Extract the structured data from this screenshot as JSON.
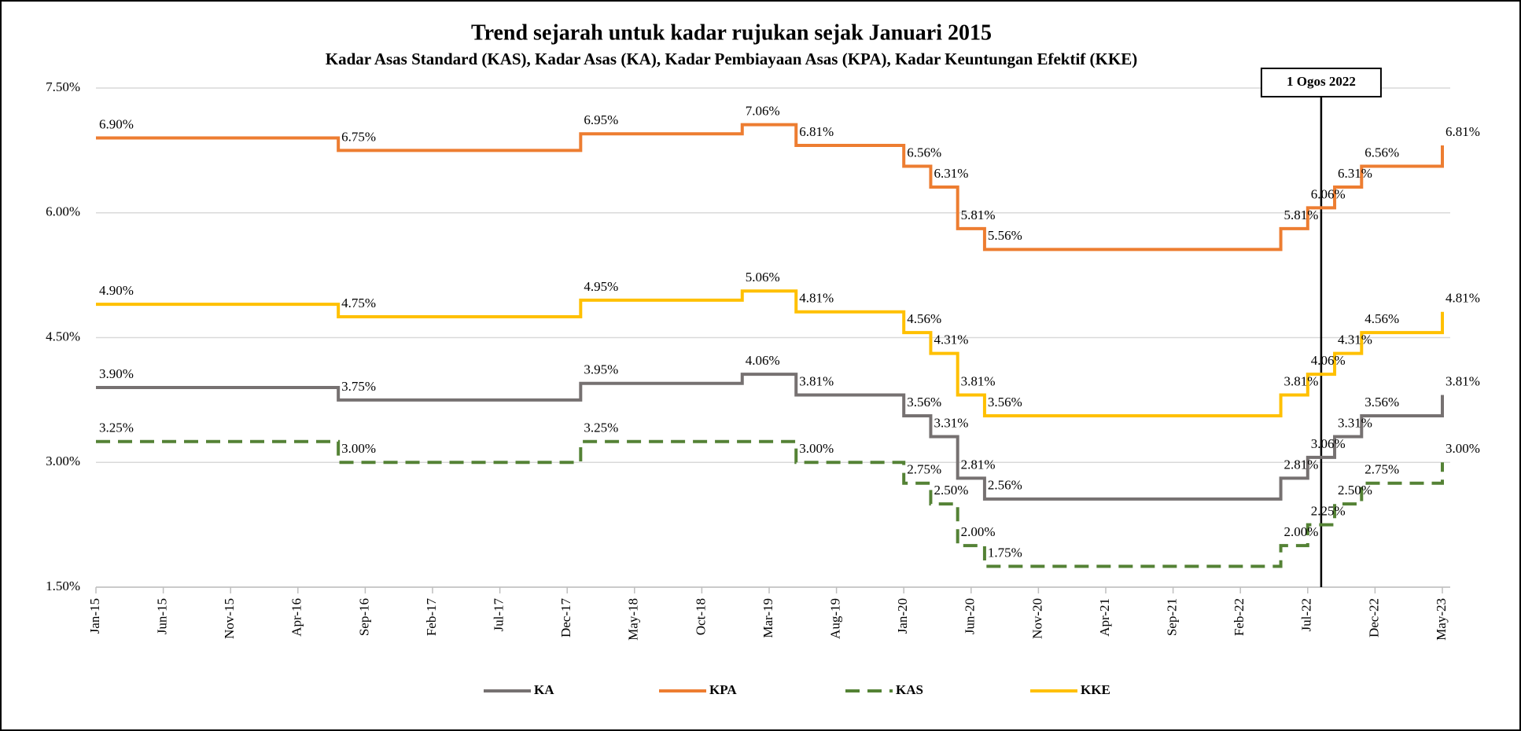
{
  "chart_data": {
    "type": "step-line",
    "title": "Trend sejarah untuk kadar rujukan sejak Januari 2015",
    "subtitle": "Kadar Asas Standard (KAS), Kadar Asas (KA), Kadar Pembiayaan Asas (KPA), Kadar Keuntungan Efektif (KKE)",
    "x": [
      "Jan-15",
      "Jul-16",
      "Jan-18",
      "Jan-19",
      "May-19",
      "Jan-20",
      "Mar-20",
      "May-20",
      "Jul-20",
      "May-22",
      "Jul-22",
      "Sep-22",
      "Nov-22",
      "May-23"
    ],
    "xlim": [
      "Jan-15",
      "May-23"
    ],
    "xticks": [
      "Jan-15",
      "Jun-15",
      "Nov-15",
      "Apr-16",
      "Sep-16",
      "Feb-17",
      "Jul-17",
      "Dec-17",
      "May-18",
      "Oct-18",
      "Mar-19",
      "Aug-19",
      "Jan-20",
      "Jun-20",
      "Nov-20",
      "Apr-21",
      "Sep-21",
      "Feb-22",
      "Jul-22",
      "Dec-22",
      "May-23"
    ],
    "ylim": [
      1.5,
      7.5
    ],
    "yticks": [
      {
        "value": 1.5,
        "label": "1.50%"
      },
      {
        "value": 3,
        "label": "3.00%"
      },
      {
        "value": 4.5,
        "label": "4.50%"
      },
      {
        "value": 6,
        "label": "6.00%"
      },
      {
        "value": 7.5,
        "label": "7.50%"
      }
    ],
    "grid": true,
    "legend": "bottom",
    "series": [
      {
        "name": "KA",
        "color": "#767171",
        "dashed": false,
        "values": [
          3.9,
          3.75,
          3.95,
          4.06,
          3.81,
          3.56,
          3.31,
          2.81,
          2.56,
          2.81,
          3.06,
          3.31,
          3.56,
          3.81
        ],
        "value_labels": [
          "3.90%",
          "3.75%",
          "3.95%",
          "4.06%",
          "3.81%",
          "3.56%",
          "3.31%",
          "2.81%",
          "2.56%",
          "2.81%",
          "3.06%",
          "3.31%",
          "3.56%",
          "3.81%"
        ]
      },
      {
        "name": "KPA",
        "color": "#ed7d31",
        "dashed": false,
        "values": [
          6.9,
          6.75,
          6.95,
          7.06,
          6.81,
          6.56,
          6.31,
          5.81,
          5.56,
          5.81,
          6.06,
          6.31,
          6.56,
          6.81
        ],
        "value_labels": [
          "6.90%",
          "6.75%",
          "6.95%",
          "7.06%",
          "6.81%",
          "6.56%",
          "6.31%",
          "5.81%",
          "5.56%",
          "5.81%",
          "6.06%",
          "6.31%",
          "6.56%",
          "6.81%"
        ]
      },
      {
        "name": "KAS",
        "color": "#548235",
        "dashed": true,
        "values": [
          3.25,
          3.0,
          3.25,
          3.25,
          3.0,
          2.75,
          2.5,
          2.0,
          1.75,
          2.0,
          2.25,
          2.5,
          2.75,
          3.0
        ],
        "value_labels": [
          "3.25%",
          "3.00%",
          "3.25%",
          null,
          "3.00%",
          "2.75%",
          "2.50%",
          "2.00%",
          "1.75%",
          "2.00%",
          "2.25%",
          "2.50%",
          "2.75%",
          "3.00%"
        ]
      },
      {
        "name": "KKE",
        "color": "#ffc000",
        "dashed": false,
        "values": [
          4.9,
          4.75,
          4.95,
          5.06,
          4.81,
          4.56,
          4.31,
          3.81,
          3.56,
          3.81,
          4.06,
          4.31,
          4.56,
          4.81
        ],
        "value_labels": [
          "4.90%",
          "4.75%",
          "4.95%",
          "5.06%",
          "4.81%",
          "4.56%",
          "4.31%",
          "3.81%",
          "3.56%",
          "3.81%",
          "4.06%",
          "4.31%",
          "4.56%",
          "4.81%"
        ]
      }
    ],
    "annotation": {
      "x": "Aug-22",
      "text": "1 Ogos 2022"
    }
  }
}
